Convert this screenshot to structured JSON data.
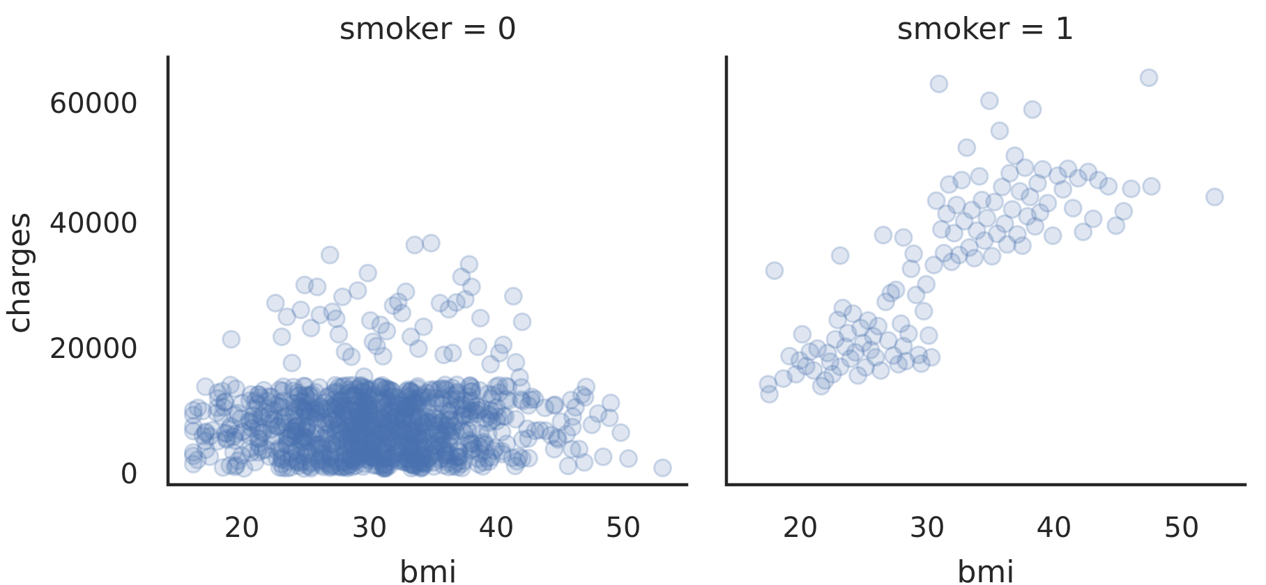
{
  "chart_data": [
    {
      "type": "scatter",
      "title": "smoker = 0",
      "xlabel": "bmi",
      "ylabel": "charges",
      "xlim": [
        14,
        55
      ],
      "ylim": [
        -1500,
        67000
      ],
      "x_ticks": [
        "20",
        "30",
        "40",
        "50"
      ],
      "y_ticks": [
        "0",
        "20000",
        "40000",
        "60000"
      ],
      "marker_color": "#4c72b0",
      "marker_alpha": 0.25,
      "grid": false,
      "seed": 7,
      "generated_points": {
        "count": 950,
        "x_mean": 30.5,
        "x_sd": 6.0,
        "x_range": [
          16.0,
          53.1
        ],
        "y_range": [
          1100,
          14500
        ]
      },
      "points": [
        {
          "x": 16.0,
          "y": 1800
        },
        {
          "x": 17.0,
          "y": 7000
        },
        {
          "x": 17.3,
          "y": 3000
        },
        {
          "x": 18.3,
          "y": 13500
        },
        {
          "x": 18.5,
          "y": 11800
        },
        {
          "x": 19.0,
          "y": 21800
        },
        {
          "x": 19.2,
          "y": 6200
        },
        {
          "x": 20.5,
          "y": 8500
        },
        {
          "x": 21.5,
          "y": 4000
        },
        {
          "x": 22.5,
          "y": 27600
        },
        {
          "x": 23.0,
          "y": 22200
        },
        {
          "x": 23.4,
          "y": 25400
        },
        {
          "x": 23.8,
          "y": 18000
        },
        {
          "x": 24.5,
          "y": 26500
        },
        {
          "x": 24.8,
          "y": 30500
        },
        {
          "x": 25.3,
          "y": 23600
        },
        {
          "x": 25.8,
          "y": 30200
        },
        {
          "x": 26.0,
          "y": 25700
        },
        {
          "x": 26.8,
          "y": 35300
        },
        {
          "x": 27.0,
          "y": 26200
        },
        {
          "x": 27.3,
          "y": 25100
        },
        {
          "x": 27.5,
          "y": 22600
        },
        {
          "x": 27.8,
          "y": 28600
        },
        {
          "x": 28.0,
          "y": 19800
        },
        {
          "x": 28.5,
          "y": 19000
        },
        {
          "x": 29.0,
          "y": 29600
        },
        {
          "x": 29.5,
          "y": 15800
        },
        {
          "x": 29.8,
          "y": 32400
        },
        {
          "x": 30.0,
          "y": 24800
        },
        {
          "x": 30.2,
          "y": 21400
        },
        {
          "x": 30.5,
          "y": 20700
        },
        {
          "x": 30.8,
          "y": 24100
        },
        {
          "x": 31.0,
          "y": 19100
        },
        {
          "x": 31.3,
          "y": 23100
        },
        {
          "x": 31.8,
          "y": 27200
        },
        {
          "x": 32.2,
          "y": 27800
        },
        {
          "x": 32.5,
          "y": 26000
        },
        {
          "x": 32.8,
          "y": 29400
        },
        {
          "x": 33.2,
          "y": 22200
        },
        {
          "x": 33.5,
          "y": 36900
        },
        {
          "x": 33.8,
          "y": 20300
        },
        {
          "x": 34.2,
          "y": 23800
        },
        {
          "x": 34.8,
          "y": 37200
        },
        {
          "x": 35.5,
          "y": 27600
        },
        {
          "x": 35.8,
          "y": 19300
        },
        {
          "x": 36.2,
          "y": 26600
        },
        {
          "x": 36.5,
          "y": 19600
        },
        {
          "x": 36.8,
          "y": 27700
        },
        {
          "x": 37.2,
          "y": 31800
        },
        {
          "x": 37.5,
          "y": 28200
        },
        {
          "x": 37.8,
          "y": 33800
        },
        {
          "x": 38.0,
          "y": 30200
        },
        {
          "x": 38.5,
          "y": 20600
        },
        {
          "x": 38.7,
          "y": 25200
        },
        {
          "x": 39.5,
          "y": 17800
        },
        {
          "x": 40.2,
          "y": 19600
        },
        {
          "x": 40.5,
          "y": 20900
        },
        {
          "x": 41.3,
          "y": 28700
        },
        {
          "x": 41.5,
          "y": 18100
        },
        {
          "x": 41.8,
          "y": 15700
        },
        {
          "x": 42.0,
          "y": 24600
        },
        {
          "x": 43.0,
          "y": 12200
        },
        {
          "x": 44.5,
          "y": 11200
        },
        {
          "x": 45.5,
          "y": 6600
        },
        {
          "x": 46.0,
          "y": 9400
        },
        {
          "x": 46.5,
          "y": 4200
        },
        {
          "x": 46.7,
          "y": 12900
        },
        {
          "x": 47.5,
          "y": 8100
        },
        {
          "x": 48.0,
          "y": 9900
        },
        {
          "x": 49.0,
          "y": 11600
        },
        {
          "x": 50.4,
          "y": 2700
        },
        {
          "x": 53.1,
          "y": 1200
        }
      ]
    },
    {
      "type": "scatter",
      "title": "smoker = 1",
      "xlabel": "bmi",
      "ylabel": "",
      "xlim": [
        14,
        55
      ],
      "ylim": [
        -1500,
        67000
      ],
      "x_ticks": [
        "20",
        "30",
        "40",
        "50"
      ],
      "y_ticks": [],
      "marker_color": "#4c72b0",
      "marker_alpha": 0.25,
      "grid": false,
      "points": [
        {
          "x": 17.3,
          "y": 14600
        },
        {
          "x": 17.4,
          "y": 13000
        },
        {
          "x": 17.8,
          "y": 32800
        },
        {
          "x": 18.5,
          "y": 15500
        },
        {
          "x": 19.0,
          "y": 19100
        },
        {
          "x": 19.5,
          "y": 16200
        },
        {
          "x": 19.8,
          "y": 18400
        },
        {
          "x": 20.0,
          "y": 22600
        },
        {
          "x": 20.3,
          "y": 17500
        },
        {
          "x": 20.6,
          "y": 19800
        },
        {
          "x": 20.9,
          "y": 16800
        },
        {
          "x": 21.2,
          "y": 20300
        },
        {
          "x": 21.5,
          "y": 14300
        },
        {
          "x": 21.8,
          "y": 15200
        },
        {
          "x": 22.0,
          "y": 19600
        },
        {
          "x": 22.2,
          "y": 18200
        },
        {
          "x": 22.4,
          "y": 16200
        },
        {
          "x": 22.6,
          "y": 21800
        },
        {
          "x": 22.8,
          "y": 24900
        },
        {
          "x": 23.0,
          "y": 35200
        },
        {
          "x": 23.0,
          "y": 17400
        },
        {
          "x": 23.2,
          "y": 26800
        },
        {
          "x": 23.4,
          "y": 20600
        },
        {
          "x": 23.6,
          "y": 22800
        },
        {
          "x": 23.8,
          "y": 18700
        },
        {
          "x": 24.0,
          "y": 25900
        },
        {
          "x": 24.2,
          "y": 19700
        },
        {
          "x": 24.4,
          "y": 16000
        },
        {
          "x": 24.6,
          "y": 23600
        },
        {
          "x": 24.8,
          "y": 21200
        },
        {
          "x": 25.0,
          "y": 17300
        },
        {
          "x": 25.2,
          "y": 24800
        },
        {
          "x": 25.4,
          "y": 20100
        },
        {
          "x": 25.6,
          "y": 22300
        },
        {
          "x": 25.8,
          "y": 18900
        },
        {
          "x": 26.0,
          "y": 23900
        },
        {
          "x": 26.2,
          "y": 16800
        },
        {
          "x": 26.4,
          "y": 38500
        },
        {
          "x": 26.6,
          "y": 27800
        },
        {
          "x": 26.8,
          "y": 21600
        },
        {
          "x": 27.0,
          "y": 29200
        },
        {
          "x": 27.2,
          "y": 19200
        },
        {
          "x": 27.4,
          "y": 29700
        },
        {
          "x": 27.6,
          "y": 17800
        },
        {
          "x": 27.8,
          "y": 24300
        },
        {
          "x": 28.0,
          "y": 38100
        },
        {
          "x": 28.0,
          "y": 20700
        },
        {
          "x": 28.2,
          "y": 18300
        },
        {
          "x": 28.4,
          "y": 22700
        },
        {
          "x": 28.6,
          "y": 33100
        },
        {
          "x": 28.8,
          "y": 35500
        },
        {
          "x": 29.0,
          "y": 28900
        },
        {
          "x": 29.2,
          "y": 19300
        },
        {
          "x": 29.4,
          "y": 17900
        },
        {
          "x": 29.6,
          "y": 26300
        },
        {
          "x": 29.8,
          "y": 30600
        },
        {
          "x": 30.0,
          "y": 22400
        },
        {
          "x": 30.2,
          "y": 18900
        },
        {
          "x": 30.4,
          "y": 33700
        },
        {
          "x": 30.6,
          "y": 44000
        },
        {
          "x": 30.8,
          "y": 62700
        },
        {
          "x": 31.0,
          "y": 39400
        },
        {
          "x": 31.2,
          "y": 35600
        },
        {
          "x": 31.4,
          "y": 41900
        },
        {
          "x": 31.6,
          "y": 46600
        },
        {
          "x": 31.8,
          "y": 34200
        },
        {
          "x": 32.0,
          "y": 38800
        },
        {
          "x": 32.2,
          "y": 43300
        },
        {
          "x": 32.4,
          "y": 35300
        },
        {
          "x": 32.6,
          "y": 47300
        },
        {
          "x": 32.8,
          "y": 40700
        },
        {
          "x": 33.0,
          "y": 52500
        },
        {
          "x": 33.2,
          "y": 36500
        },
        {
          "x": 33.4,
          "y": 42500
        },
        {
          "x": 33.6,
          "y": 34800
        },
        {
          "x": 33.8,
          "y": 39200
        },
        {
          "x": 34.0,
          "y": 47900
        },
        {
          "x": 34.2,
          "y": 44100
        },
        {
          "x": 34.4,
          "y": 37600
        },
        {
          "x": 34.6,
          "y": 41200
        },
        {
          "x": 34.8,
          "y": 60000
        },
        {
          "x": 35.0,
          "y": 35100
        },
        {
          "x": 35.2,
          "y": 43800
        },
        {
          "x": 35.4,
          "y": 38700
        },
        {
          "x": 35.6,
          "y": 55200
        },
        {
          "x": 35.8,
          "y": 46200
        },
        {
          "x": 36.0,
          "y": 40300
        },
        {
          "x": 36.2,
          "y": 37000
        },
        {
          "x": 36.4,
          "y": 48400
        },
        {
          "x": 36.6,
          "y": 42600
        },
        {
          "x": 36.8,
          "y": 51200
        },
        {
          "x": 37.0,
          "y": 38600
        },
        {
          "x": 37.2,
          "y": 45500
        },
        {
          "x": 37.4,
          "y": 36800
        },
        {
          "x": 37.6,
          "y": 49300
        },
        {
          "x": 37.8,
          "y": 41500
        },
        {
          "x": 38.0,
          "y": 44600
        },
        {
          "x": 38.2,
          "y": 58600
        },
        {
          "x": 38.4,
          "y": 39900
        },
        {
          "x": 38.6,
          "y": 46800
        },
        {
          "x": 38.8,
          "y": 42100
        },
        {
          "x": 39.0,
          "y": 49000
        },
        {
          "x": 39.4,
          "y": 43600
        },
        {
          "x": 39.8,
          "y": 38400
        },
        {
          "x": 40.2,
          "y": 48000
        },
        {
          "x": 40.6,
          "y": 45800
        },
        {
          "x": 41.0,
          "y": 49100
        },
        {
          "x": 41.4,
          "y": 42800
        },
        {
          "x": 41.8,
          "y": 47600
        },
        {
          "x": 42.2,
          "y": 39000
        },
        {
          "x": 42.6,
          "y": 48600
        },
        {
          "x": 43.0,
          "y": 41100
        },
        {
          "x": 43.4,
          "y": 47300
        },
        {
          "x": 44.2,
          "y": 46300
        },
        {
          "x": 44.8,
          "y": 40000
        },
        {
          "x": 45.4,
          "y": 42300
        },
        {
          "x": 46.0,
          "y": 45900
        },
        {
          "x": 47.4,
          "y": 63700
        },
        {
          "x": 47.6,
          "y": 46300
        },
        {
          "x": 52.6,
          "y": 44600
        }
      ]
    }
  ]
}
